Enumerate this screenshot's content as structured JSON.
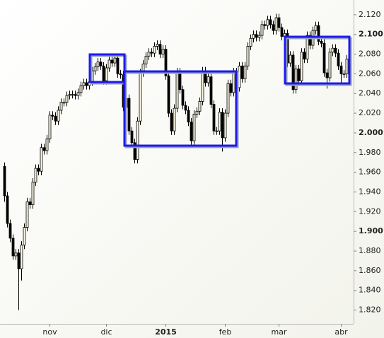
{
  "chart_data": {
    "type": "candlestick",
    "categories": [
      null,
      null,
      null,
      null,
      null,
      null,
      null,
      null,
      null,
      null,
      null,
      null,
      null,
      null,
      null,
      null,
      "nov",
      null,
      null,
      null,
      null,
      null,
      null,
      null,
      null,
      null,
      null,
      null,
      null,
      null,
      null,
      null,
      null,
      null,
      null,
      null,
      "dic",
      null,
      null,
      null,
      null,
      null,
      null,
      null,
      null,
      null,
      null,
      null,
      null,
      null,
      null,
      null,
      null,
      null,
      null,
      null,
      null,
      "2015",
      null,
      null,
      null,
      null,
      null,
      null,
      null,
      null,
      null,
      null,
      null,
      null,
      null,
      null,
      null,
      null,
      null,
      null,
      null,
      null,
      "feb",
      null,
      null,
      null,
      null,
      null,
      null,
      null,
      null,
      null,
      null,
      null,
      null,
      null,
      null,
      null,
      null,
      null,
      null,
      "mar",
      null,
      null,
      null,
      null,
      null,
      null,
      null,
      null,
      null,
      null,
      null,
      null,
      null,
      null,
      null,
      null,
      null,
      null,
      null,
      null,
      null,
      "abr",
      null,
      null
    ],
    "open": [
      1966,
      1936,
      1908,
      1893,
      1875,
      1878,
      1862,
      1886,
      1904,
      1930,
      1927,
      1950,
      1964,
      1961,
      1985,
      1982,
      1994,
      2018,
      2017,
      2012,
      2023,
      2031,
      2031,
      2038,
      2039,
      2039,
      2038,
      2041,
      2048,
      2051,
      2048,
      2052,
      2063,
      2067,
      2072,
      2068,
      2053,
      2066,
      2074,
      2071,
      2076,
      2060,
      2059,
      2026,
      2035,
      2002,
      1990,
      1973,
      2012,
      2061,
      2070,
      2078,
      2082,
      2081,
      2088,
      2090,
      2080,
      2085,
      2058,
      2020,
      2002,
      2025,
      2062,
      2044,
      2028,
      2023,
      2011,
      1992,
      2019,
      2022,
      2032,
      2063,
      2051,
      2057,
      2029,
      2002,
      2002,
      2021,
      1995,
      2020,
      2050,
      2041,
      2062,
      2046,
      2068,
      2055,
      2068,
      2088,
      2096,
      2100,
      2097,
      2099,
      2110,
      2109,
      2115,
      2110,
      2104,
      2117,
      2107,
      2098,
      2101,
      2071,
      2079,
      2044,
      2065,
      2053,
      2082,
      2075,
      2099,
      2089,
      2104,
      2109,
      2093,
      2091,
      2061,
      2056,
      2082,
      2086,
      2081,
      2068,
      2060,
      2060
    ],
    "high": [
      1970,
      1940,
      1912,
      1897,
      1882,
      1882,
      1890,
      1908,
      1934,
      1934,
      1954,
      1968,
      1968,
      1989,
      1989,
      1998,
      2022,
      2022,
      2021,
      2027,
      2035,
      2035,
      2042,
      2043,
      2043,
      2043,
      2045,
      2052,
      2055,
      2055,
      2056,
      2067,
      2071,
      2076,
      2076,
      2072,
      2070,
      2078,
      2078,
      2080,
      2080,
      2064,
      2063,
      2039,
      2039,
      2006,
      1994,
      2016,
      2065,
      2074,
      2082,
      2086,
      2086,
      2092,
      2094,
      2094,
      2089,
      2089,
      2062,
      2024,
      2029,
      2066,
      2066,
      2048,
      2032,
      2027,
      2015,
      2023,
      2026,
      2036,
      2067,
      2067,
      2061,
      2061,
      2033,
      2006,
      2025,
      2025,
      2024,
      2054,
      2054,
      2066,
      2066,
      2072,
      2072,
      2072,
      2092,
      2100,
      2104,
      2104,
      2103,
      2114,
      2114,
      2119,
      2119,
      2114,
      2121,
      2121,
      2111,
      2105,
      2105,
      2083,
      2083,
      2069,
      2069,
      2086,
      2086,
      2103,
      2103,
      2108,
      2113,
      2113,
      2097,
      2095,
      2065,
      2086,
      2090,
      2090,
      2085,
      2072,
      2064,
      2079
    ],
    "low": [
      1930,
      1904,
      1889,
      1871,
      1871,
      1820,
      1850,
      1882,
      1900,
      1923,
      1923,
      1946,
      1957,
      1957,
      1978,
      1978,
      1990,
      2013,
      2008,
      2008,
      2019,
      2027,
      2027,
      2034,
      2035,
      2034,
      2034,
      2037,
      2044,
      2044,
      2044,
      2048,
      2059,
      2063,
      2064,
      2049,
      2049,
      2062,
      2067,
      2067,
      2056,
      2055,
      2022,
      2022,
      1998,
      1986,
      1969,
      1969,
      2008,
      2057,
      2066,
      2074,
      2077,
      2077,
      2084,
      2076,
      2076,
      2054,
      2016,
      1998,
      1998,
      2021,
      2040,
      2024,
      2019,
      2007,
      1988,
      1988,
      2015,
      2018,
      2028,
      2047,
      2047,
      2025,
      1998,
      1998,
      1998,
      1981,
      1991,
      2016,
      2037,
      2037,
      2042,
      2042,
      2051,
      2051,
      2064,
      2084,
      2092,
      2093,
      2093,
      2095,
      2105,
      2105,
      2106,
      2100,
      2100,
      2103,
      2094,
      2094,
      2067,
      2067,
      2040,
      2040,
      2049,
      2049,
      2071,
      2071,
      2085,
      2085,
      2100,
      2089,
      2087,
      2057,
      2045,
      2052,
      2078,
      2077,
      2064,
      2050,
      2056,
      2056
    ],
    "close": [
      1936,
      1908,
      1893,
      1875,
      1878,
      1862,
      1886,
      1904,
      1930,
      1927,
      1950,
      1964,
      1961,
      1985,
      1982,
      1994,
      2018,
      2017,
      2012,
      2023,
      2031,
      2031,
      2038,
      2039,
      2039,
      2038,
      2041,
      2048,
      2051,
      2048,
      2052,
      2063,
      2067,
      2072,
      2068,
      2053,
      2066,
      2074,
      2071,
      2076,
      2060,
      2059,
      2026,
      2035,
      2002,
      1990,
      1973,
      2012,
      2061,
      2070,
      2078,
      2082,
      2081,
      2088,
      2090,
      2080,
      2085,
      2058,
      2020,
      2002,
      2025,
      2062,
      2044,
      2028,
      2023,
      2011,
      1992,
      2019,
      2022,
      2032,
      2063,
      2051,
      2057,
      2029,
      2002,
      2002,
      2021,
      1995,
      2020,
      2050,
      2041,
      2062,
      2046,
      2068,
      2055,
      2068,
      2088,
      2096,
      2100,
      2097,
      2099,
      2110,
      2109,
      2115,
      2110,
      2104,
      2117,
      2107,
      2098,
      2101,
      2071,
      2079,
      2044,
      2065,
      2053,
      2082,
      2075,
      2099,
      2089,
      2104,
      2109,
      2093,
      2091,
      2061,
      2056,
      2082,
      2086,
      2081,
      2068,
      2060,
      2060,
      2075
    ],
    "up_color": "#fffbe2",
    "down_color": "#000000",
    "ylim": [
      1806,
      2135
    ],
    "yticks": [
      {
        "value": 1820,
        "label": "1.820"
      },
      {
        "value": 1840,
        "label": "1.840"
      },
      {
        "value": 1860,
        "label": "1.860"
      },
      {
        "value": 1880,
        "label": "1.880"
      },
      {
        "value": 1900,
        "label": "1.900"
      },
      {
        "value": 1920,
        "label": "1.920"
      },
      {
        "value": 1940,
        "label": "1.940"
      },
      {
        "value": 1960,
        "label": "1.960"
      },
      {
        "value": 1980,
        "label": "1.980"
      },
      {
        "value": 2000,
        "label": "2.000"
      },
      {
        "value": 2020,
        "label": "2.020"
      },
      {
        "value": 2040,
        "label": "2.040"
      },
      {
        "value": 2060,
        "label": "2.060"
      },
      {
        "value": 2080,
        "label": "2.080"
      },
      {
        "value": 2100,
        "label": "2.100"
      },
      {
        "value": 2120,
        "label": "2.120"
      }
    ],
    "grid": false
  }
}
